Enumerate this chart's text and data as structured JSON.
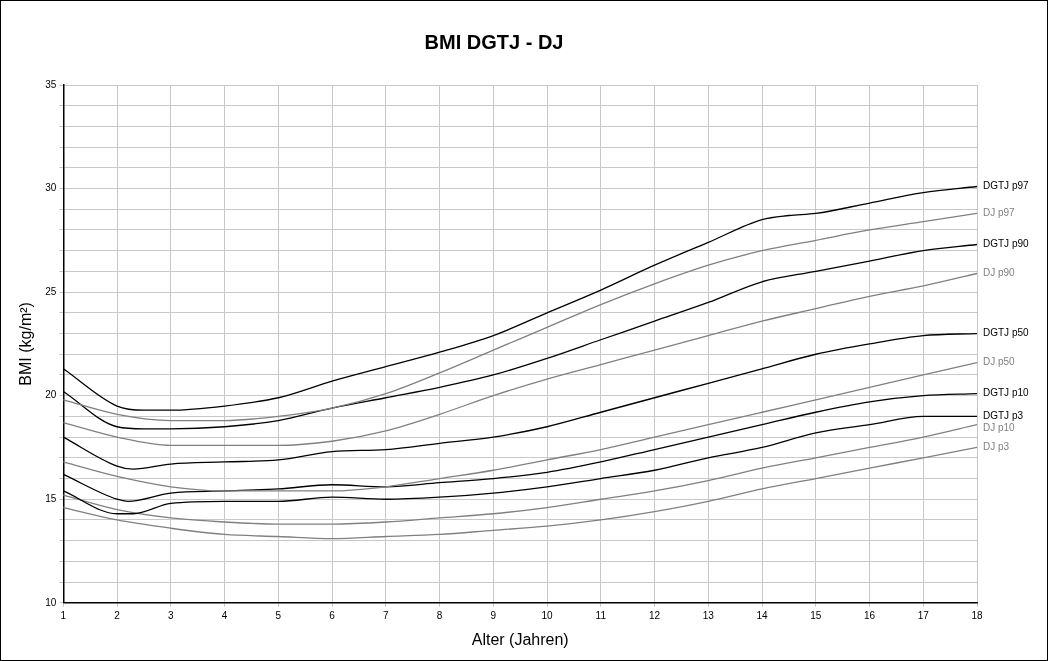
{
  "chart_data": {
    "type": "line",
    "title": "BMI DGTJ - DJ",
    "xlabel": "Alter (Jahren)",
    "ylabel": "BMI (kg/m²)",
    "xlim": [
      1,
      18
    ],
    "xticks": [
      1,
      2,
      3,
      4,
      5,
      6,
      7,
      8,
      9,
      10,
      11,
      12,
      13,
      14,
      15,
      16,
      17,
      18
    ],
    "ylim": [
      10,
      35
    ],
    "yticks": [
      10,
      {
        "value": 11,
        "label": null
      },
      {
        "value": 12,
        "label": null
      },
      {
        "value": 13,
        "label": null
      },
      {
        "value": 14,
        "label": null
      },
      15,
      {
        "value": 16,
        "label": null
      },
      {
        "value": 17,
        "label": null
      },
      {
        "value": 18,
        "label": null
      },
      {
        "value": 19,
        "label": null
      },
      20,
      {
        "value": 21,
        "label": null
      },
      {
        "value": 22,
        "label": null
      },
      {
        "value": 23,
        "label": null
      },
      {
        "value": 24,
        "label": null
      },
      25,
      {
        "value": 26,
        "label": null
      },
      {
        "value": 27,
        "label": null
      },
      {
        "value": 28,
        "label": null
      },
      {
        "value": 29,
        "label": null
      },
      30,
      {
        "value": 31,
        "label": null
      },
      {
        "value": 32,
        "label": null
      },
      {
        "value": 33,
        "label": null
      },
      {
        "value": 34,
        "label": null
      },
      35
    ],
    "grid": true,
    "legend": false,
    "marker": "none",
    "line_style": "solid",
    "series": [
      {
        "name": "DGTJ p97",
        "color": "#000000",
        "x": [
          1,
          2,
          2.5,
          3,
          4,
          5,
          6,
          7,
          8,
          9,
          10,
          11,
          12,
          13,
          14,
          14.5,
          15,
          16,
          17,
          18
        ],
        "values": [
          21.3,
          19.5,
          19.3,
          19.3,
          19.5,
          19.9,
          20.7,
          21.4,
          22.1,
          22.9,
          24.0,
          25.1,
          26.3,
          27.4,
          28.5,
          28.7,
          28.8,
          29.3,
          29.8,
          30.1
        ]
      },
      {
        "name": "DJ p97",
        "color": "#808080",
        "x": [
          1,
          2,
          3,
          4,
          5,
          6,
          7,
          8,
          9,
          10,
          11,
          12,
          13,
          14,
          15,
          16,
          17,
          18
        ],
        "values": [
          19.8,
          19.1,
          18.8,
          18.8,
          19.0,
          19.4,
          20.1,
          21.1,
          22.2,
          23.3,
          24.4,
          25.4,
          26.3,
          27.0,
          27.5,
          28.0,
          28.4,
          28.8
        ]
      },
      {
        "name": "DGTJ p90",
        "color": "#000000",
        "x": [
          1,
          2,
          2.5,
          3,
          4,
          5,
          6,
          7,
          8,
          9,
          10,
          11,
          12,
          13,
          14,
          15,
          16,
          17,
          18
        ],
        "values": [
          20.2,
          18.5,
          18.4,
          18.4,
          18.5,
          18.8,
          19.4,
          19.9,
          20.4,
          21.0,
          21.8,
          22.7,
          23.6,
          24.5,
          25.5,
          26.0,
          26.5,
          27.0,
          27.3
        ]
      },
      {
        "name": "DJ p90",
        "color": "#808080",
        "x": [
          1,
          2,
          3,
          4,
          5,
          6,
          7,
          8,
          9,
          10,
          11,
          12,
          13,
          14,
          15,
          16,
          17,
          18
        ],
        "values": [
          18.7,
          18.0,
          17.6,
          17.6,
          17.6,
          17.8,
          18.3,
          19.1,
          20.0,
          20.8,
          21.5,
          22.2,
          22.9,
          23.6,
          24.2,
          24.8,
          25.3,
          25.9
        ]
      },
      {
        "name": "DGTJ p50",
        "color": "#000000",
        "x": [
          1,
          2,
          2.3,
          3,
          4,
          5,
          6,
          7,
          8,
          9,
          10,
          11,
          12,
          13,
          14,
          15,
          16,
          17,
          18
        ],
        "values": [
          18.0,
          16.6,
          16.45,
          16.7,
          16.8,
          16.9,
          17.3,
          17.4,
          17.7,
          18.0,
          18.5,
          19.2,
          19.9,
          20.6,
          21.3,
          22.0,
          22.5,
          22.9,
          23.0
        ]
      },
      {
        "name": "DJ p50",
        "color": "#808080",
        "x": [
          1,
          2,
          3,
          4,
          5,
          6,
          7,
          8,
          9,
          10,
          11,
          12,
          13,
          14,
          15,
          16,
          17,
          18
        ],
        "values": [
          16.8,
          16.1,
          15.6,
          15.4,
          15.4,
          15.4,
          15.6,
          16.0,
          16.4,
          16.9,
          17.4,
          18.0,
          18.6,
          19.2,
          19.8,
          20.4,
          21.0,
          21.6
        ]
      },
      {
        "name": "DGTJ p10",
        "color": "#000000",
        "x": [
          1,
          2,
          2.2,
          3,
          4,
          5,
          6,
          7,
          8,
          9,
          10,
          11,
          12,
          13,
          14,
          15,
          16,
          17,
          18
        ],
        "values": [
          16.2,
          15.0,
          14.9,
          15.3,
          15.4,
          15.5,
          15.7,
          15.6,
          15.8,
          16.0,
          16.3,
          16.8,
          17.4,
          18.0,
          18.6,
          19.2,
          19.7,
          20.0,
          20.1
        ]
      },
      {
        "name": "DGTJ p3",
        "color": "#000000",
        "x": [
          1,
          2,
          2.3,
          3,
          4,
          5,
          6,
          7,
          8,
          9,
          10,
          11,
          12,
          13,
          14,
          15,
          16,
          17,
          18
        ],
        "values": [
          15.4,
          14.3,
          14.3,
          14.8,
          14.9,
          14.9,
          15.1,
          15.0,
          15.1,
          15.3,
          15.6,
          16.0,
          16.4,
          17.0,
          17.5,
          18.2,
          18.6,
          19.0,
          19.0
        ]
      },
      {
        "name": "DJ p10",
        "color": "#808080",
        "x": [
          1,
          2,
          3,
          4,
          5,
          6,
          7,
          8,
          9,
          10,
          11,
          12,
          13,
          14,
          15,
          16,
          17,
          18
        ],
        "values": [
          15.2,
          14.5,
          14.1,
          13.9,
          13.8,
          13.8,
          13.9,
          14.1,
          14.3,
          14.6,
          15.0,
          15.4,
          15.9,
          16.5,
          17.0,
          17.5,
          18.0,
          18.6
        ]
      },
      {
        "name": "DJ p3",
        "color": "#808080",
        "x": [
          1,
          2,
          3,
          4,
          5,
          6,
          7,
          8,
          9,
          10,
          11,
          12,
          13,
          14,
          15,
          16,
          17,
          18
        ],
        "values": [
          14.6,
          14.0,
          13.6,
          13.3,
          13.2,
          13.1,
          13.2,
          13.3,
          13.5,
          13.7,
          14.0,
          14.4,
          14.9,
          15.5,
          16.0,
          16.5,
          17.0,
          17.5
        ]
      }
    ]
  }
}
